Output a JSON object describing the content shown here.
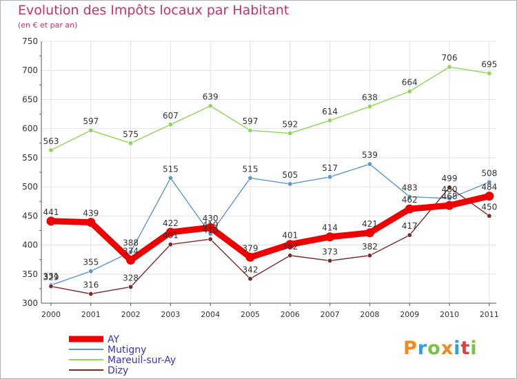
{
  "title": "Evolution des Impôts locaux par Habitant",
  "subtitle": "(en € et par an)",
  "logo": {
    "letters": [
      "P",
      "r",
      "o",
      "x",
      "i",
      "t",
      "i"
    ],
    "colors": [
      "#f08a1c",
      "#2f9fd8",
      "#7cc242",
      "#f08a1c",
      "#2f9fd8",
      "#e23c3c",
      "#7cc242"
    ]
  },
  "chart_data": {
    "type": "line",
    "x": [
      "2000",
      "2001",
      "2002",
      "2003",
      "2004",
      "2005",
      "2006",
      "2007",
      "2008",
      "2009",
      "2010",
      "2011"
    ],
    "ylim": [
      300,
      750
    ],
    "yticks": [
      "300",
      "350",
      "400",
      "450",
      "500",
      "550",
      "600",
      "650",
      "700",
      "750"
    ],
    "grid": true,
    "legend_position": "bottom-left",
    "series": [
      {
        "name": "AY",
        "color": "#ee0000",
        "values": [
          441,
          439,
          374,
          422,
          430,
          379,
          401,
          414,
          421,
          462,
          468,
          484
        ],
        "labels": [
          "441",
          "439",
          "374",
          "422",
          "430",
          "379",
          "401",
          "414",
          "421",
          "462",
          "468",
          "484"
        ]
      },
      {
        "name": "Mutigny",
        "color": "#5b95c9",
        "values": [
          331,
          355,
          388,
          515,
          419,
          515,
          505,
          517,
          539,
          483,
          480,
          508
        ],
        "labels": [
          "331",
          "355",
          "388",
          "515",
          "419",
          "515",
          "505",
          "517",
          "539",
          "483",
          "480",
          "508"
        ]
      },
      {
        "name": "Mareuil-sur-Ay",
        "color": "#90d458",
        "values": [
          563,
          597,
          575,
          607,
          639,
          597,
          592,
          614,
          638,
          664,
          706,
          695
        ],
        "labels": [
          "563",
          "597",
          "575",
          "607",
          "639",
          "597",
          "592",
          "614",
          "638",
          "664",
          "706",
          "695"
        ]
      },
      {
        "name": "Dizy",
        "color": "#7a2929",
        "values": [
          329,
          316,
          328,
          401,
          410,
          342,
          382,
          373,
          382,
          417,
          499,
          450
        ],
        "labels": [
          "329",
          "316",
          "328",
          "401",
          "410",
          "342",
          "382",
          "373",
          "382",
          "417",
          "499",
          "450"
        ]
      }
    ]
  }
}
